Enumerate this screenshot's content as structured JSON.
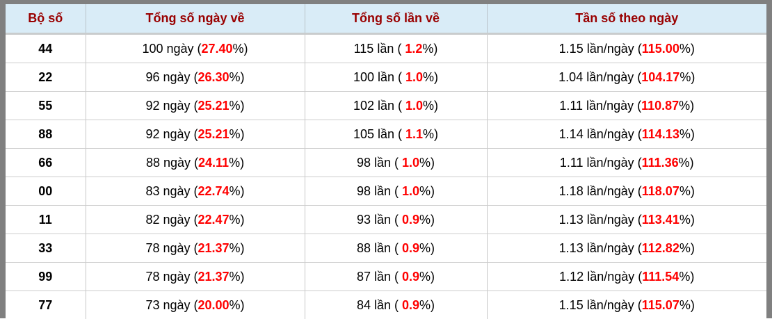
{
  "colors": {
    "frame": "#808080",
    "header_bg": "#d9ecf7",
    "header_text": "#990000",
    "highlight_red": "#ff0000",
    "cell_border": "#c6c6c6"
  },
  "table": {
    "columns": [
      {
        "label": "Bộ số"
      },
      {
        "label": "Tổng số ngày về"
      },
      {
        "label": "Tổng số lần về"
      },
      {
        "label": "Tần số theo ngày"
      }
    ],
    "rows": [
      {
        "pair": "44",
        "days_prefix": "100 ngày (",
        "days_pct": "27.40",
        "days_suffix": "%)",
        "times_prefix": "115 lần ( ",
        "times_pct": "1.2",
        "times_suffix": "%)",
        "freq_prefix": "1.15 lần/ngày (",
        "freq_pct": "115.00",
        "freq_suffix": "%)"
      },
      {
        "pair": "22",
        "days_prefix": "96 ngày (",
        "days_pct": "26.30",
        "days_suffix": "%)",
        "times_prefix": "100 lần ( ",
        "times_pct": "1.0",
        "times_suffix": "%)",
        "freq_prefix": "1.04 lần/ngày (",
        "freq_pct": "104.17",
        "freq_suffix": "%)"
      },
      {
        "pair": "55",
        "days_prefix": "92 ngày (",
        "days_pct": "25.21",
        "days_suffix": "%)",
        "times_prefix": "102 lần ( ",
        "times_pct": "1.0",
        "times_suffix": "%)",
        "freq_prefix": "1.11 lần/ngày (",
        "freq_pct": "110.87",
        "freq_suffix": "%)"
      },
      {
        "pair": "88",
        "days_prefix": "92 ngày (",
        "days_pct": "25.21",
        "days_suffix": "%)",
        "times_prefix": "105 lần ( ",
        "times_pct": "1.1",
        "times_suffix": "%)",
        "freq_prefix": "1.14 lần/ngày (",
        "freq_pct": "114.13",
        "freq_suffix": "%)"
      },
      {
        "pair": "66",
        "days_prefix": "88 ngày (",
        "days_pct": "24.11",
        "days_suffix": "%)",
        "times_prefix": "98 lần ( ",
        "times_pct": "1.0",
        "times_suffix": "%)",
        "freq_prefix": "1.11 lần/ngày (",
        "freq_pct": "111.36",
        "freq_suffix": "%)"
      },
      {
        "pair": "00",
        "days_prefix": "83 ngày (",
        "days_pct": "22.74",
        "days_suffix": "%)",
        "times_prefix": "98 lần ( ",
        "times_pct": "1.0",
        "times_suffix": "%)",
        "freq_prefix": "1.18 lần/ngày (",
        "freq_pct": "118.07",
        "freq_suffix": "%)"
      },
      {
        "pair": "11",
        "days_prefix": "82 ngày (",
        "days_pct": "22.47",
        "days_suffix": "%)",
        "times_prefix": "93 lần ( ",
        "times_pct": "0.9",
        "times_suffix": "%)",
        "freq_prefix": "1.13 lần/ngày (",
        "freq_pct": "113.41",
        "freq_suffix": "%)"
      },
      {
        "pair": "33",
        "days_prefix": "78 ngày (",
        "days_pct": "21.37",
        "days_suffix": "%)",
        "times_prefix": "88 lần ( ",
        "times_pct": "0.9",
        "times_suffix": "%)",
        "freq_prefix": "1.13 lần/ngày (",
        "freq_pct": "112.82",
        "freq_suffix": "%)"
      },
      {
        "pair": "99",
        "days_prefix": "78 ngày (",
        "days_pct": "21.37",
        "days_suffix": "%)",
        "times_prefix": "87 lần ( ",
        "times_pct": "0.9",
        "times_suffix": "%)",
        "freq_prefix": "1.12 lần/ngày (",
        "freq_pct": "111.54",
        "freq_suffix": "%)"
      },
      {
        "pair": "77",
        "days_prefix": "73 ngày (",
        "days_pct": "20.00",
        "days_suffix": "%)",
        "times_prefix": "84 lần ( ",
        "times_pct": "0.9",
        "times_suffix": "%)",
        "freq_prefix": "1.15 lần/ngày (",
        "freq_pct": "115.07",
        "freq_suffix": "%)"
      }
    ]
  }
}
